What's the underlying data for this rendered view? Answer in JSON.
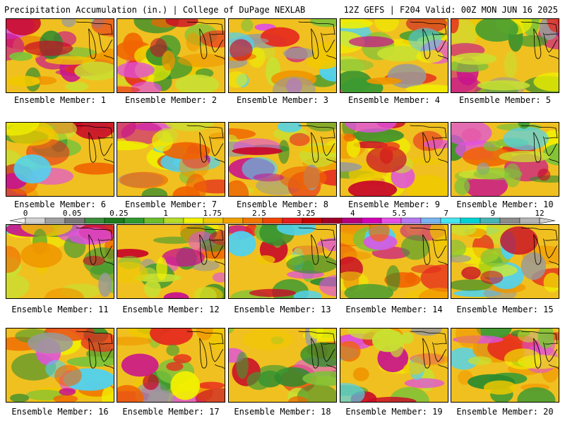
{
  "header": {
    "title": "Precipitation Accumulation (in.) | College of DuPage NEXLAB",
    "run_info": "12Z GEFS | F204 Valid: 00Z MON JUN 16 2025"
  },
  "member_prefix": "Ensemble Member: ",
  "members": [
    "1",
    "2",
    "3",
    "4",
    "5",
    "6",
    "7",
    "8",
    "9",
    "10",
    "11",
    "12",
    "13",
    "14",
    "15",
    "16",
    "17",
    "18",
    "19",
    "20"
  ],
  "legend": {
    "labels": [
      "0",
      "0.05",
      "0.25",
      "1",
      "1.75",
      "2.5",
      "3.25",
      "4",
      "5.5",
      "7",
      "9",
      "12"
    ],
    "colors": [
      "#d2d2d2",
      "#a0a0a0",
      "#787878",
      "#3c8c3c",
      "#1e7a1e",
      "#2e9a2e",
      "#6cbe2c",
      "#b4dc28",
      "#f0f000",
      "#f0c800",
      "#f0a000",
      "#f07800",
      "#f04600",
      "#e61e1e",
      "#c80000",
      "#a00028",
      "#b4007a",
      "#d200b4",
      "#e650e6",
      "#b478f0",
      "#78b4f0",
      "#46e6f0",
      "#00d2d2",
      "#46b4b4",
      "#8c8c8c",
      "#b4b4b4"
    ]
  }
}
